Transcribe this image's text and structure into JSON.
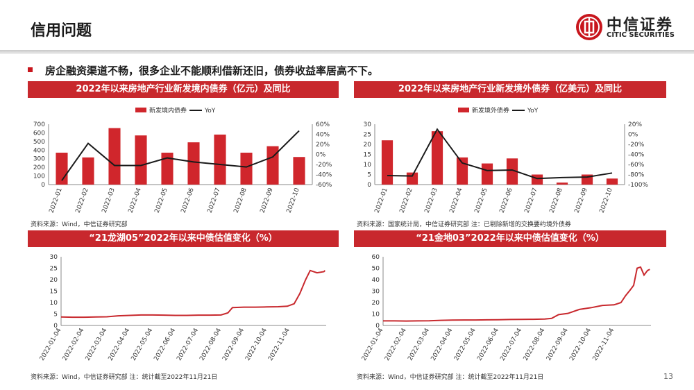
{
  "header": {
    "title": "信用问题"
  },
  "logo": {
    "cn": "中信证券",
    "en": "CITIC SECURITIES"
  },
  "bullet": "房企融资渠道不畅，很多企业不能顺利借新还旧，债券收益率居高不下。",
  "page_number": "13",
  "colors": {
    "accent": "#c8282d",
    "bar": "#d0262c",
    "line": "#1a1a1a",
    "series_line": "#c8282d"
  },
  "chart_data": [
    {
      "type": "bar",
      "title": "2022年以来房地产行业新发境内债券（亿元）及同比",
      "categories": [
        "2022-01",
        "2022-02",
        "2022-03",
        "2022-04",
        "2022-05",
        "2022-06",
        "2022-07",
        "2022-08",
        "2022-09",
        "2022-10"
      ],
      "series": [
        {
          "name": "新发境内债券",
          "type": "bar",
          "axis": "left",
          "values": [
            370,
            315,
            655,
            570,
            370,
            490,
            580,
            370,
            445,
            320
          ]
        },
        {
          "name": "YoY",
          "type": "line",
          "axis": "right",
          "values": [
            -52,
            22,
            -22,
            -22,
            -7,
            -15,
            -20,
            -25,
            -5,
            47
          ]
        }
      ],
      "ylim": [
        0,
        700
      ],
      "yticks": [
        "0",
        "100",
        "200",
        "300",
        "400",
        "500",
        "600",
        "700"
      ],
      "y2lim": [
        -60,
        60
      ],
      "y2ticks": [
        "-60%",
        "-40%",
        "-20%",
        "0%",
        "20%",
        "40%",
        "60%"
      ],
      "legend": "top",
      "source": "资料来源：Wind，中信证券研究部"
    },
    {
      "type": "bar",
      "title": "2022年以来房地产行业新发境外债券（亿美元）及同比",
      "categories": [
        "2022-01",
        "2022-02",
        "2022-03",
        "2022-04",
        "2022-05",
        "2022-06",
        "2022-07",
        "2022-08",
        "2022-09",
        "2022-10"
      ],
      "series": [
        {
          "name": "新发境外债券",
          "type": "bar",
          "axis": "left",
          "values": [
            22,
            6,
            26.5,
            13.5,
            10.5,
            13,
            5,
            1,
            5,
            3
          ]
        },
        {
          "name": "YoY",
          "type": "line",
          "axis": "right",
          "values": [
            -82,
            -83,
            10,
            -57,
            -72,
            -71,
            -88,
            -86,
            -85,
            -77
          ]
        }
      ],
      "ylim": [
        0,
        30
      ],
      "yticks": [
        "0",
        "5",
        "10",
        "15",
        "20",
        "25",
        "30"
      ],
      "y2lim": [
        -100,
        20
      ],
      "y2ticks": [
        "-100%",
        "-80%",
        "-60%",
        "-40%",
        "-20%",
        "0%",
        "20%"
      ],
      "legend": "top",
      "source": "资料来源：国家统计局，中信证券研究部 注：已剔除新增的交换要约境外债券"
    },
    {
      "type": "line",
      "title": "“21龙湖05”2022年以来中债估值变化（%）",
      "xticks": [
        "2022-01-04",
        "2022-02-04",
        "2022-03-04",
        "2022-04-04",
        "2022-05-04",
        "2022-06-04",
        "2022-07-04",
        "2022-08-04",
        "2022-09-04",
        "2022-10-04",
        "2022-11-04"
      ],
      "series": [
        {
          "x": [
            0,
            0.5,
            1,
            1.5,
            2,
            2.5,
            3,
            3.5,
            4,
            4.5,
            5,
            5.5,
            6,
            6.5,
            7,
            7.3,
            7.5,
            8,
            8.5,
            9,
            9.5,
            9.9,
            10.2,
            10.45,
            10.7,
            10.9,
            11.2,
            11.5,
            11.55
          ],
          "values": [
            3.7,
            3.6,
            3.6,
            3.7,
            3.8,
            4.2,
            4.4,
            4.6,
            4.6,
            4.5,
            4.4,
            4.4,
            4.5,
            4.5,
            4.6,
            5.5,
            7.8,
            8.0,
            8.0,
            8.1,
            8.2,
            8.4,
            9.5,
            14,
            20,
            24,
            23,
            23.5,
            24
          ]
        }
      ],
      "ylim": [
        0,
        30
      ],
      "yticks": [
        "0",
        "5",
        "10",
        "15",
        "20",
        "25",
        "30"
      ],
      "source": "资料来源：Wind，中信证券研究部 注：统计截至2022年11月21日"
    },
    {
      "type": "line",
      "title": "“21金地03”2022年以来中债估值变化（%）",
      "xticks": [
        "2022-01-04",
        "2022-02-04",
        "2022-03-04",
        "2022-04-04",
        "2022-05-04",
        "2022-06-04",
        "2022-07-04",
        "2022-08-04",
        "2022-09-04",
        "2022-10-04",
        "2022-11-04"
      ],
      "series": [
        {
          "x": [
            0,
            0.5,
            1,
            1.5,
            2,
            2.5,
            3,
            3.5,
            4,
            4.5,
            5,
            5.5,
            6,
            6.5,
            7,
            7.3,
            7.6,
            8,
            8.5,
            9,
            9.5,
            10,
            10.3,
            10.5,
            10.7,
            10.85,
            11,
            11.15,
            11.3,
            11.45,
            11.55
          ],
          "values": [
            4.0,
            4.0,
            3.9,
            4.0,
            4.1,
            4.5,
            4.7,
            4.8,
            4.8,
            4.9,
            5.0,
            5.2,
            5.3,
            5.4,
            5.6,
            6.2,
            9.5,
            10.5,
            14,
            15.5,
            17.5,
            18,
            20,
            26,
            31,
            35,
            50,
            51,
            44,
            48,
            49
          ]
        }
      ],
      "ylim": [
        0,
        60
      ],
      "yticks": [
        "0",
        "10",
        "20",
        "30",
        "40",
        "50",
        "60"
      ],
      "source": "资料来源：Wind，中信证券研究部 注：统计截至2022年11月21日"
    }
  ]
}
